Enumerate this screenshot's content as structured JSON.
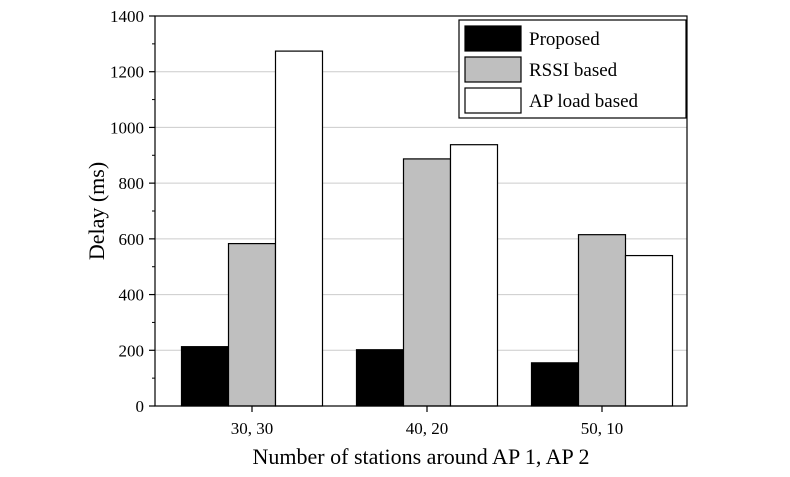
{
  "chart_data": {
    "type": "bar",
    "title": "",
    "xlabel": "Number of stations around AP 1, AP 2",
    "ylabel": "Delay (ms)",
    "categories": [
      "30, 30",
      "40, 20",
      "50, 10"
    ],
    "series": [
      {
        "name": "Proposed",
        "values": [
          213,
          202,
          155
        ],
        "color": "#000000"
      },
      {
        "name": "RSSI based",
        "values": [
          583,
          887,
          615
        ],
        "color": "#bfbfbf"
      },
      {
        "name": "AP load based",
        "values": [
          1274,
          938,
          540
        ],
        "color": "#ffffff"
      }
    ],
    "ylim": [
      0,
      1400
    ],
    "yticks": [
      0,
      200,
      400,
      600,
      800,
      1000,
      1200,
      1400
    ],
    "grid": true,
    "legend_position": "top-right"
  }
}
